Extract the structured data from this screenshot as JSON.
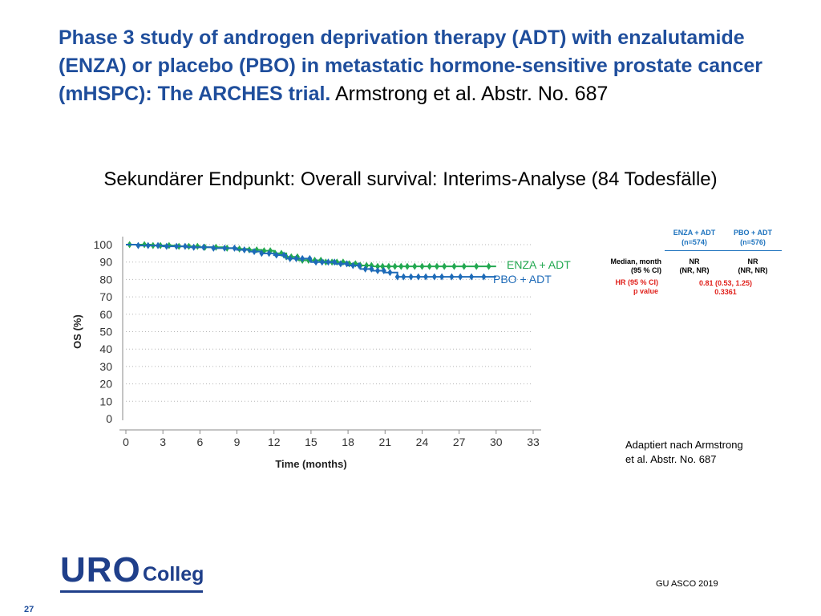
{
  "slide": {
    "title_bold": "Phase 3 study of androgen deprivation therapy (ADT) with enzalutamide (ENZA) or placebo (PBO) in metastatic hormone-sensitive prostate cancer (mHSPC): The ARCHES trial.",
    "title_ref": "Armstrong et al. Abstr. No. 687",
    "subtitle": "Sekundärer Endpunkt: Overall survival: Interims-Analyse (84 Todesfälle)",
    "note_line1": "Adaptiert nach Armstrong",
    "note_line2": "et al. Abstr. No. 687",
    "source": "GU ASCO 2019",
    "page_number": "27",
    "logo_uro": "URO",
    "logo_colleg": "Colleg"
  },
  "stats_table": {
    "col1_header_line1": "ENZA + ADT",
    "col1_header_line2": "(n=574)",
    "col2_header_line1": "PBO + ADT",
    "col2_header_line2": "(n=576)",
    "row1_label_line1": "Median, month",
    "row1_label_line2": "(95 % CI)",
    "row2_label_line1": "HR (95 % CI)",
    "row2_label_line2": "p value",
    "col1_median": "NR",
    "col1_ci": "(NR, NR)",
    "col2_median": "NR",
    "col2_ci": "(NR, NR)",
    "hr": "0.81 (0.53, 1.25)",
    "p_value": "0.3361"
  },
  "colors": {
    "title_blue": "#1f4e9c",
    "enza_green": "#22a850",
    "pbo_blue": "#1e6bb8",
    "stat_red": "#e0201b"
  },
  "chart_data": {
    "type": "line",
    "title": "",
    "xlabel": "Time (months)",
    "ylabel": "OS (%)",
    "xlim": [
      0,
      33
    ],
    "ylim": [
      0,
      100
    ],
    "x_ticks": [
      0,
      3,
      6,
      9,
      12,
      15,
      18,
      21,
      24,
      27,
      30,
      33
    ],
    "y_ticks": [
      0,
      10,
      20,
      30,
      40,
      50,
      60,
      70,
      80,
      90,
      100
    ],
    "grid": "horizontal-dotted",
    "series": [
      {
        "name": "ENZA + ADT",
        "color": "#22a850",
        "steps": [
          [
            0,
            100
          ],
          [
            2,
            99.5
          ],
          [
            4,
            99
          ],
          [
            6,
            98.5
          ],
          [
            8,
            98
          ],
          [
            9,
            97.5
          ],
          [
            10,
            97
          ],
          [
            11,
            96.5
          ],
          [
            12,
            95
          ],
          [
            13,
            93
          ],
          [
            14,
            91
          ],
          [
            16,
            90
          ],
          [
            18,
            89
          ],
          [
            19,
            88
          ],
          [
            20,
            87.5
          ],
          [
            21,
            87.5
          ],
          [
            30,
            87.5
          ]
        ],
        "censor_x": [
          0.3,
          1.5,
          2.2,
          2.8,
          3.5,
          4.3,
          5.1,
          5.8,
          6.4,
          7.3,
          8.2,
          9.2,
          10.0,
          10.6,
          11.2,
          11.7,
          12.1,
          12.6,
          13.0,
          13.4,
          13.9,
          14.3,
          14.8,
          15.3,
          15.8,
          16.2,
          16.7,
          17.1,
          17.6,
          18.1,
          18.6,
          19.0,
          19.5,
          19.9,
          20.4,
          20.8,
          21.3,
          21.8,
          22.3,
          22.8,
          23.4,
          24.0,
          24.6,
          25.2,
          25.8,
          26.6,
          27.4,
          28.4,
          29.4
        ]
      },
      {
        "name": "PBO + ADT",
        "color": "#1e6bb8",
        "steps": [
          [
            0,
            100
          ],
          [
            1,
            99.5
          ],
          [
            3,
            99
          ],
          [
            5,
            98.5
          ],
          [
            7,
            98
          ],
          [
            9,
            97
          ],
          [
            10,
            96
          ],
          [
            11,
            95
          ],
          [
            12,
            94
          ],
          [
            13,
            92
          ],
          [
            15,
            90
          ],
          [
            17,
            89
          ],
          [
            18,
            88
          ],
          [
            19,
            86
          ],
          [
            20,
            85
          ],
          [
            21,
            84
          ],
          [
            22,
            81.5
          ],
          [
            30,
            81.5
          ]
        ],
        "censor_x": [
          1.0,
          1.8,
          2.6,
          3.3,
          4.1,
          4.8,
          5.5,
          6.3,
          7.1,
          8.0,
          8.8,
          9.6,
          10.4,
          11.0,
          11.6,
          12.2,
          12.8,
          13.3,
          13.8,
          14.3,
          14.9,
          15.4,
          15.9,
          16.4,
          16.9,
          17.4,
          17.9,
          18.4,
          18.9,
          19.4,
          19.9,
          20.4,
          20.9,
          21.4,
          22.0,
          22.5,
          23.1,
          23.7,
          24.3,
          25.0,
          25.6,
          26.4,
          27.1,
          28.0,
          29.0
        ]
      }
    ]
  }
}
